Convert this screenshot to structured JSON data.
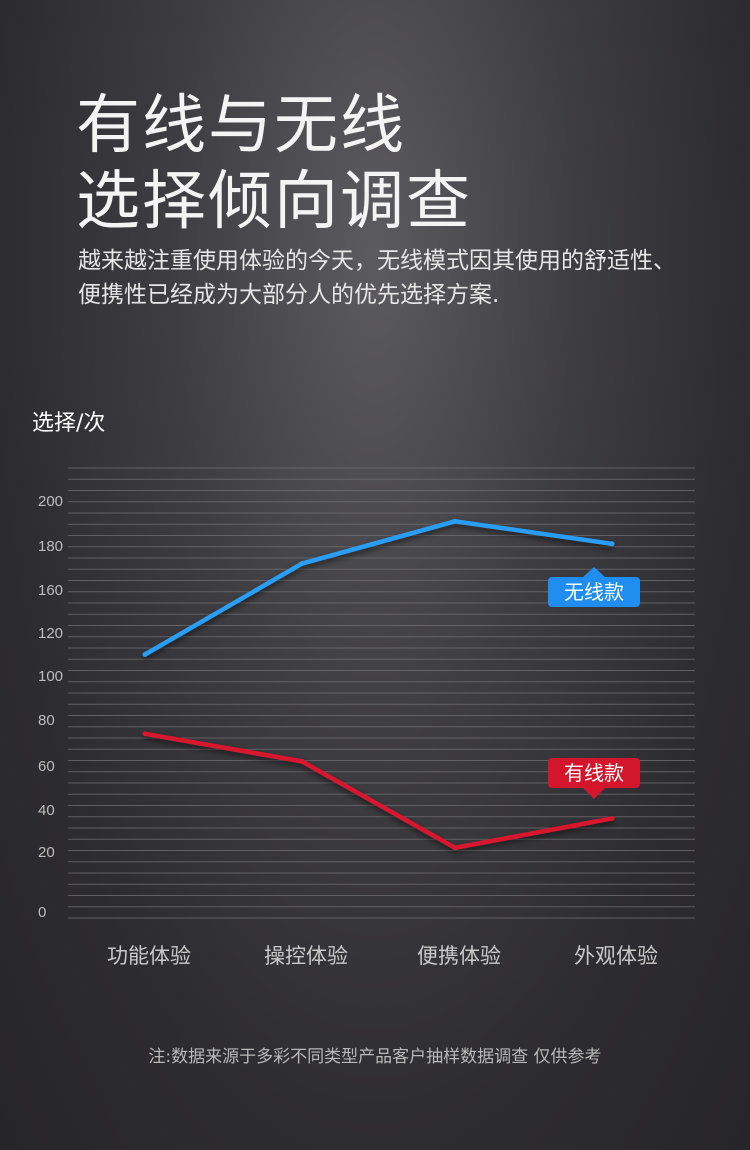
{
  "header": {
    "title_lines": [
      "有线与无线",
      "选择倾向调查"
    ],
    "subtitle_lines": [
      "越来越注重使用体验的今天，无线模式因其使用的舒适性、",
      "便携性已经成为大部分人的优先选择方案."
    ]
  },
  "footnote": "注:数据来源于多彩不同类型产品客户抽样数据调查 仅供参考",
  "chart_data": {
    "type": "line",
    "ylabel": "选择/次",
    "xlabel": "",
    "categories": [
      "功能体验",
      "操控体验",
      "便携体验",
      "外观体验"
    ],
    "y_ticks": [
      "0",
      "20",
      "40",
      "60",
      "80",
      "100",
      "120",
      "160",
      "180",
      "200"
    ],
    "grid": true,
    "series": [
      {
        "name": "无线款",
        "values": [
          110,
          172,
          191,
          181
        ],
        "color": "#2a9df4",
        "tag_color": "#1f8ef0"
      },
      {
        "name": "有线款",
        "values": [
          74,
          62,
          22,
          36
        ],
        "color": "#d8192e",
        "tag_color": "#d4162c"
      }
    ]
  }
}
